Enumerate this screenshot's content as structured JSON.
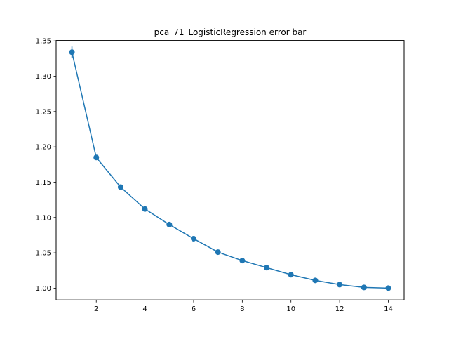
{
  "chart_data": {
    "type": "line",
    "title": "pca_71_LogisticRegression error bar",
    "xlabel": "",
    "ylabel": "",
    "x": [
      1,
      2,
      3,
      4,
      5,
      6,
      7,
      8,
      9,
      10,
      11,
      12,
      13,
      14
    ],
    "series": [
      {
        "values": [
          1.334,
          1.185,
          1.143,
          1.112,
          1.09,
          1.07,
          1.051,
          1.039,
          1.029,
          1.019,
          1.011,
          1.005,
          1.001,
          1.0
        ],
        "errors": [
          0.008,
          0.003,
          0.003,
          0.002,
          0.002,
          0.002,
          0.002,
          0.002,
          0.001,
          0.001,
          0.001,
          0.001,
          0.001,
          0.001
        ]
      }
    ],
    "xlim": [
      0.35,
      14.65
    ],
    "ylim": [
      0.9833,
      1.3506
    ],
    "xticks": [
      2,
      4,
      6,
      8,
      10,
      12,
      14
    ],
    "xtick_labels": [
      "2",
      "4",
      "6",
      "8",
      "10",
      "12",
      "14"
    ],
    "yticks": [
      1.0,
      1.05,
      1.1,
      1.15,
      1.2,
      1.25,
      1.3,
      1.35
    ],
    "ytick_labels": [
      "1.00",
      "1.05",
      "1.10",
      "1.15",
      "1.20",
      "1.25",
      "1.30",
      "1.35"
    ],
    "grid": false,
    "color": "#1f77b4"
  }
}
